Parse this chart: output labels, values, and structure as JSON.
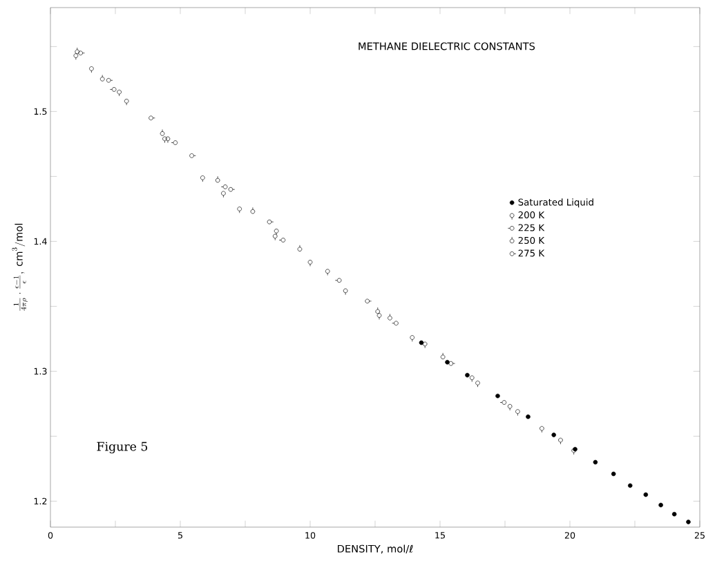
{
  "chart_data": {
    "type": "scatter",
    "title": "METHANE DIELECTRIC CONSTANTS",
    "xlabel": "DENSITY, mol/ℓ",
    "ylabel": "\\frac{1}{4\\pi\\rho}\\cdot\\frac{\\epsilon-1}{\\epsilon},\\ \\mathrm{cm}^{3}/\\mathrm{mol}",
    "annotations": [
      "Figure 5"
    ],
    "xlim": [
      0,
      25
    ],
    "ylim": [
      1.18,
      1.58
    ],
    "xticks": [
      0,
      {
        "value": 2.5,
        "label": null
      },
      5,
      {
        "value": 7.5,
        "label": null
      },
      10,
      {
        "value": 12.5,
        "label": null
      },
      15,
      {
        "value": 17.5,
        "label": null
      },
      20,
      {
        "value": 22.5,
        "label": null
      },
      25
    ],
    "yticks": [
      1.2,
      {
        "value": 1.25,
        "label": null
      },
      1.3,
      {
        "value": 1.35,
        "label": null
      },
      1.4,
      {
        "value": 1.45,
        "label": null
      },
      1.5,
      {
        "value": 1.55,
        "label": null
      }
    ],
    "legend": "right",
    "grid": false,
    "series": [
      {
        "name": "Saturated Liquid",
        "color": "#000000",
        "x": [
          14.28,
          15.28,
          16.05,
          17.22,
          18.39,
          19.38,
          20.2,
          20.98,
          21.68,
          22.32,
          22.92,
          23.5,
          24.02,
          24.56
        ],
        "values": [
          1.322,
          1.307,
          1.297,
          1.281,
          1.265,
          1.251,
          1.24,
          1.23,
          1.221,
          1.212,
          1.205,
          1.197,
          1.19,
          1.184
        ]
      },
      {
        "name": "200 K",
        "color": "#000000",
        "x": [
          0.98,
          1.58,
          2.65,
          2.93,
          4.4,
          4.52,
          5.86,
          6.66,
          7.28,
          8.7,
          8.65,
          10.0,
          10.67,
          11.36,
          12.66,
          13.93,
          14.42,
          16.23,
          16.45,
          17.69,
          17.99,
          18.92,
          19.64,
          20.15
        ],
        "values": [
          1.543,
          1.533,
          1.515,
          1.508,
          1.479,
          1.479,
          1.449,
          1.437,
          1.425,
          1.408,
          1.404,
          1.384,
          1.377,
          1.362,
          1.343,
          1.326,
          1.321,
          1.295,
          1.291,
          1.273,
          1.269,
          1.256,
          1.247,
          1.239
        ]
      },
      {
        "name": "225 K",
        "color": "#000000",
        "x": [
          2.45,
          4.81,
          6.73,
          8.96,
          11.12,
          13.31,
          17.47
        ],
        "values": [
          1.517,
          1.476,
          1.442,
          1.401,
          1.37,
          1.337,
          1.276
        ]
      },
      {
        "name": "250 K",
        "color": "#000000",
        "x": [
          1.03,
          2.0,
          4.31,
          6.44,
          7.79,
          9.6,
          12.6,
          13.07,
          15.11
        ],
        "values": [
          1.546,
          1.525,
          1.483,
          1.447,
          1.423,
          1.394,
          1.346,
          1.341,
          1.311
        ]
      },
      {
        "name": "275 K",
        "color": "#000000",
        "x": [
          1.16,
          2.24,
          3.87,
          5.44,
          6.94,
          8.43,
          12.2,
          15.42
        ],
        "values": [
          1.545,
          1.524,
          1.495,
          1.466,
          1.44,
          1.415,
          1.354,
          1.306
        ]
      }
    ]
  }
}
